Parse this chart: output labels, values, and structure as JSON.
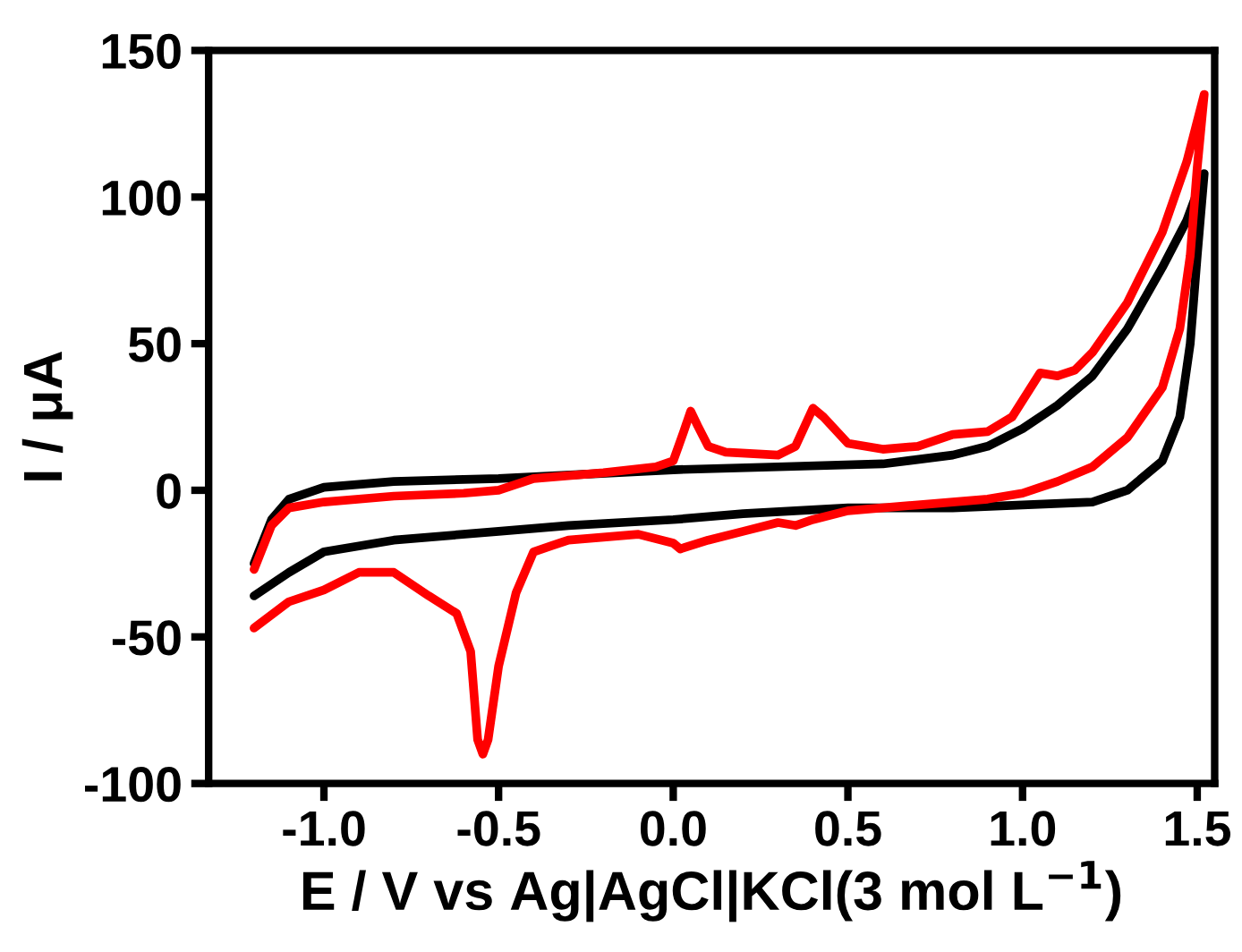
{
  "chart_data": {
    "type": "line",
    "xlabel": "E / V vs Ag|AgCl|KCl(3 mol L$^{−1}$)",
    "ylabel": "I / μA",
    "xlim": [
      -1.33,
      1.55
    ],
    "ylim": [
      -100,
      150
    ],
    "xticks": [
      {
        "value": -1.0,
        "label": "-1.0"
      },
      {
        "value": -0.5,
        "label": "-0.5"
      },
      {
        "value": 0.0,
        "label": "0.0"
      },
      {
        "value": 0.5,
        "label": "0.5"
      },
      {
        "value": 1.0,
        "label": "1.0"
      },
      {
        "value": 1.5,
        "label": "1.5"
      }
    ],
    "yticks": [
      -100,
      -50,
      0,
      50,
      100,
      150
    ],
    "grid": false,
    "legend": false,
    "marker": "none",
    "line_style": "solid",
    "series": [
      {
        "color": "#000000",
        "x": [
          -1.2,
          -1.15,
          -1.1,
          -1.0,
          -0.8,
          -0.5,
          0.0,
          0.3,
          0.6,
          0.8,
          0.9,
          1.0,
          1.1,
          1.2,
          1.3,
          1.4,
          1.47,
          1.52,
          1.5,
          1.48,
          1.45,
          1.4,
          1.3,
          1.2,
          1.0,
          0.8,
          0.5,
          0.2,
          0.0,
          -0.3,
          -0.5,
          -0.8,
          -1.0,
          -1.1,
          -1.2
        ],
        "values": [
          -25,
          -10,
          -3,
          1,
          3,
          4,
          7,
          8,
          9,
          12,
          15,
          21,
          29,
          39,
          55,
          76,
          92,
          108,
          80,
          50,
          25,
          10,
          0,
          -4,
          -5,
          -6,
          -6,
          -8,
          -10,
          -12,
          -14,
          -17,
          -21,
          -28,
          -36
        ]
      },
      {
        "color": "#ff0000",
        "x": [
          -1.2,
          -1.15,
          -1.1,
          -1.0,
          -0.8,
          -0.6,
          -0.5,
          -0.4,
          -0.2,
          -0.05,
          0.0,
          0.03,
          0.05,
          0.07,
          0.1,
          0.15,
          0.3,
          0.35,
          0.4,
          0.43,
          0.5,
          0.6,
          0.7,
          0.8,
          0.9,
          0.97,
          1.05,
          1.1,
          1.15,
          1.2,
          1.3,
          1.4,
          1.47,
          1.52,
          1.5,
          1.48,
          1.45,
          1.4,
          1.3,
          1.2,
          1.1,
          1.0,
          0.9,
          0.7,
          0.5,
          0.4,
          0.35,
          0.3,
          0.2,
          0.1,
          0.02,
          0.0,
          -0.1,
          -0.3,
          -0.35,
          -0.4,
          -0.45,
          -0.5,
          -0.53,
          -0.545,
          -0.56,
          -0.58,
          -0.62,
          -0.7,
          -0.8,
          -0.9,
          -1.0,
          -1.1,
          -1.2
        ],
        "values": [
          -27,
          -12,
          -6,
          -4,
          -2,
          -1,
          0,
          4,
          6,
          8,
          10,
          20,
          27,
          22,
          15,
          13,
          12,
          15,
          28,
          25,
          16,
          14,
          15,
          19,
          20,
          25,
          40,
          39,
          41,
          47,
          64,
          88,
          112,
          135,
          110,
          80,
          55,
          35,
          18,
          8,
          3,
          -1,
          -3,
          -5,
          -7,
          -10,
          -12,
          -11,
          -14,
          -17,
          -20,
          -18,
          -15,
          -17,
          -19,
          -21,
          -35,
          -60,
          -85,
          -90,
          -85,
          -55,
          -42,
          -36,
          -28,
          -28,
          -34,
          -38,
          -47
        ]
      }
    ]
  }
}
